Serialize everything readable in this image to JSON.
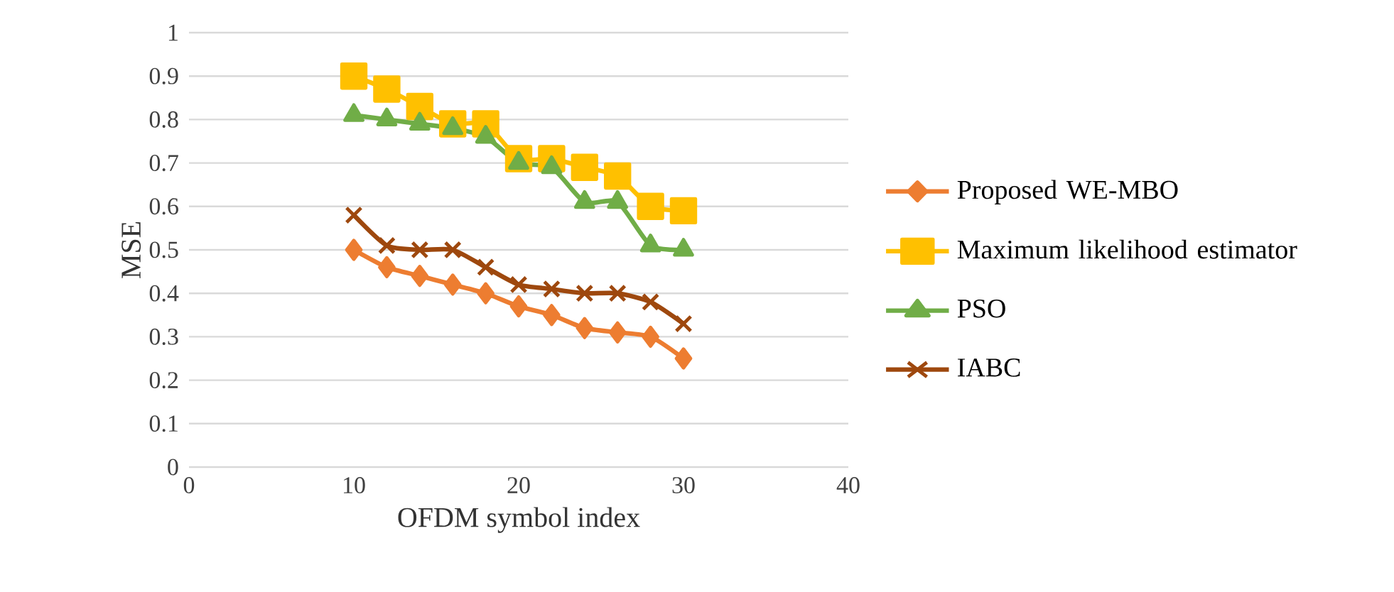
{
  "chart_data": {
    "type": "line",
    "xlabel": "OFDM symbol index",
    "ylabel": "MSE",
    "xlim": [
      0,
      40
    ],
    "xticks": [
      0,
      10,
      20,
      30,
      40
    ],
    "ylim": [
      0,
      1
    ],
    "yticks": [
      0,
      0.1,
      0.2,
      0.3,
      0.4,
      0.5,
      0.6,
      0.7,
      0.8,
      0.9,
      1
    ],
    "grid": "y",
    "legend": "right",
    "x": [
      10,
      12,
      14,
      16,
      18,
      20,
      22,
      24,
      26,
      28,
      30
    ],
    "series": [
      {
        "name": "Proposed WE-MBO",
        "color": "#ed7d31",
        "marker": "diamond",
        "values": [
          0.5,
          0.46,
          0.44,
          0.42,
          0.4,
          0.37,
          0.35,
          0.32,
          0.31,
          0.3,
          0.25
        ]
      },
      {
        "name": "Maximum likelihood estimator",
        "color": "#ffc000",
        "marker": "square",
        "values": [
          0.9,
          0.87,
          0.83,
          0.79,
          0.79,
          0.71,
          0.71,
          0.69,
          0.67,
          0.6,
          0.59
        ]
      },
      {
        "name": "PSO",
        "color": "#70ad47",
        "marker": "triangle",
        "values": [
          0.81,
          0.8,
          0.79,
          0.78,
          0.76,
          0.7,
          0.69,
          0.61,
          0.61,
          0.51,
          0.5
        ]
      },
      {
        "name": "IABC",
        "color": "#9e480e",
        "marker": "cross",
        "values": [
          0.58,
          0.51,
          0.5,
          0.5,
          0.46,
          0.42,
          0.41,
          0.4,
          0.4,
          0.38,
          0.33
        ]
      }
    ]
  }
}
